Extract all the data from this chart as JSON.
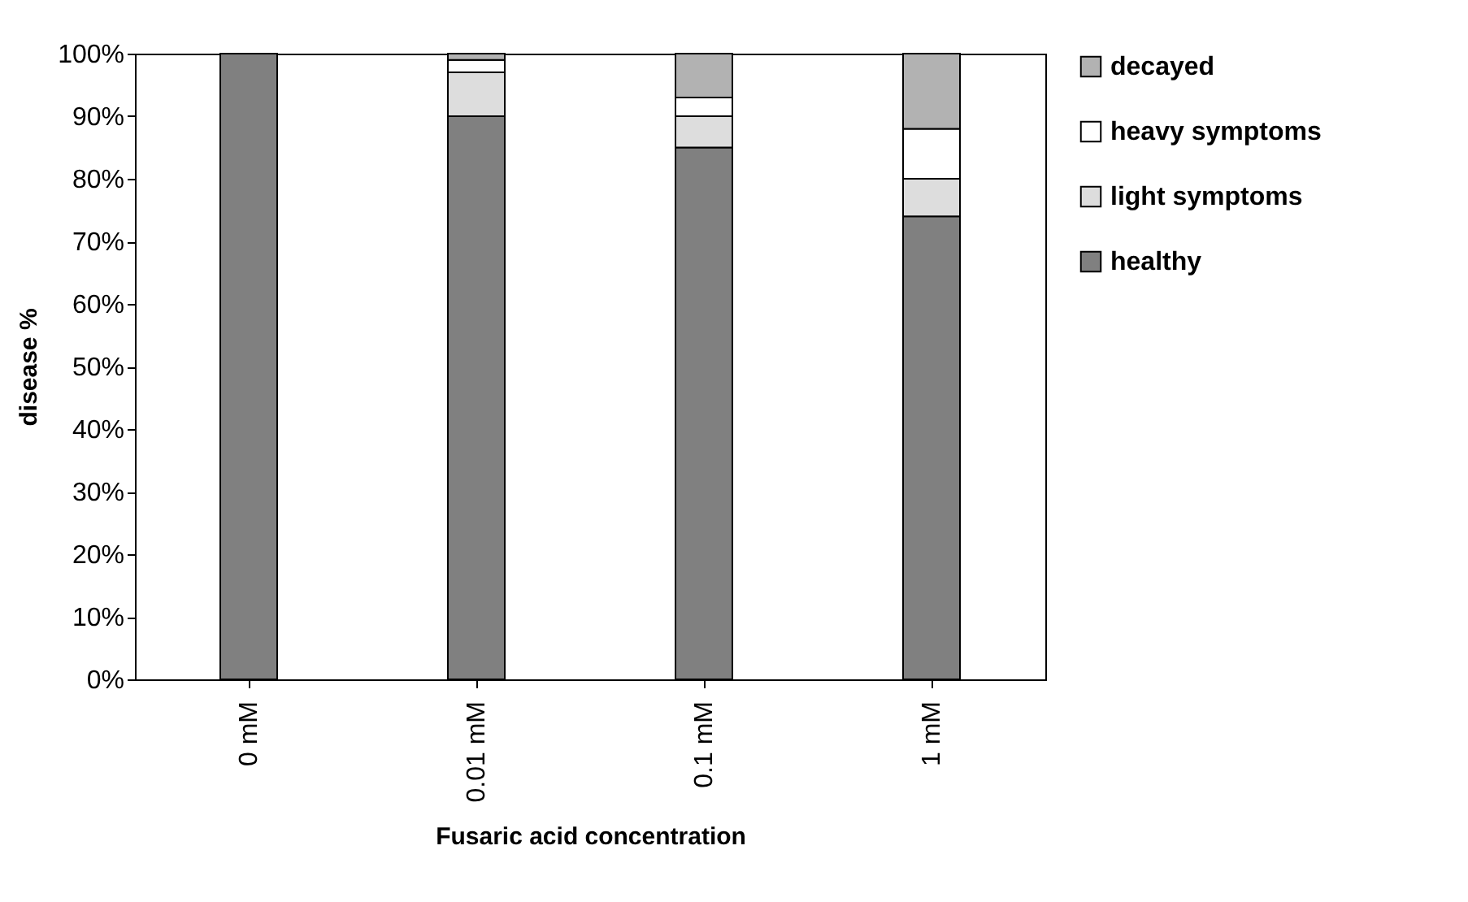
{
  "chart_data": {
    "type": "bar",
    "stacked": true,
    "xlabel": "Fusaric acid concentration",
    "ylabel": "disease %",
    "categories": [
      "0 mM",
      "0.01 mM",
      "0.1 mM",
      "1 mM"
    ],
    "series": [
      {
        "name": "healthy",
        "color": "#808080",
        "values": [
          100,
          90,
          85,
          74
        ]
      },
      {
        "name": "light symptoms",
        "color": "#dddddd",
        "values": [
          0,
          7,
          5,
          6
        ]
      },
      {
        "name": "heavy symptoms",
        "color": "#ffffff",
        "values": [
          0,
          2,
          3,
          8
        ]
      },
      {
        "name": "decayed",
        "color": "#b2b2b2",
        "values": [
          0,
          1,
          7,
          12
        ]
      }
    ],
    "ylim": [
      0,
      100
    ],
    "yticks": [
      {
        "value": 0,
        "label": "0%"
      },
      {
        "value": 10,
        "label": "10%"
      },
      {
        "value": 20,
        "label": "20%"
      },
      {
        "value": 30,
        "label": "30%"
      },
      {
        "value": 40,
        "label": "40%"
      },
      {
        "value": 50,
        "label": "50%"
      },
      {
        "value": 60,
        "label": "60%"
      },
      {
        "value": 70,
        "label": "70%"
      },
      {
        "value": 80,
        "label": "80%"
      },
      {
        "value": 90,
        "label": "90%"
      },
      {
        "value": 100,
        "label": "100%"
      }
    ],
    "grid": false,
    "legend": "right"
  }
}
